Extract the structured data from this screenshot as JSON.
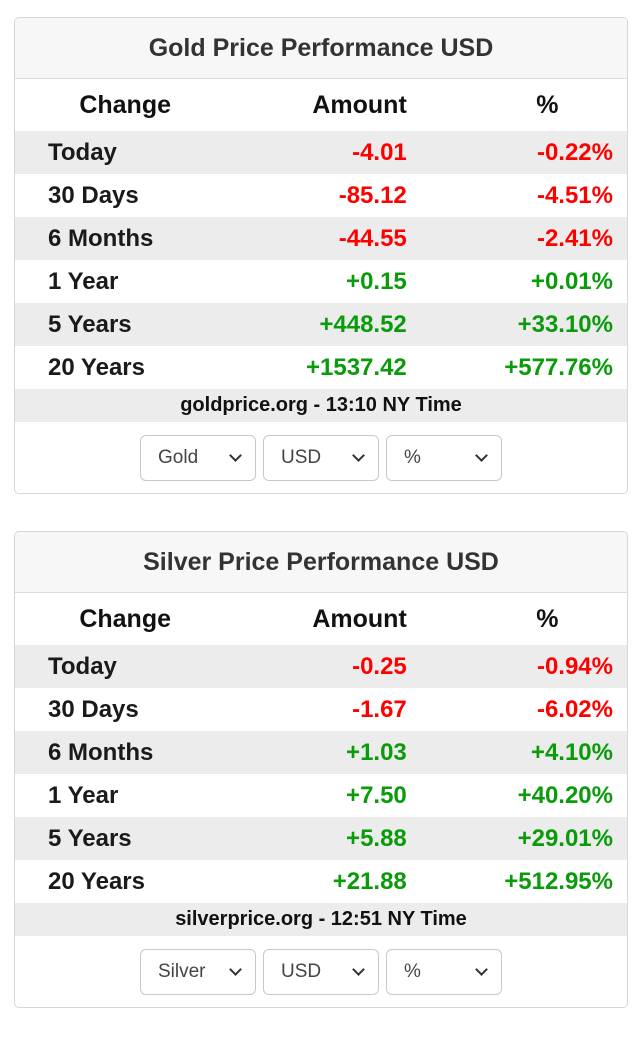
{
  "colors": {
    "positive": "#0a9b0a",
    "negative": "#ff0000"
  },
  "cards": [
    {
      "title": "Gold Price Performance USD",
      "columns": {
        "change": "Change",
        "amount": "Amount",
        "percent": "%"
      },
      "rows": [
        {
          "label": "Today",
          "amount": "-4.01",
          "percent": "-0.22%",
          "direction": "down"
        },
        {
          "label": "30 Days",
          "amount": "-85.12",
          "percent": "-4.51%",
          "direction": "down"
        },
        {
          "label": "6 Months",
          "amount": "-44.55",
          "percent": "-2.41%",
          "direction": "down"
        },
        {
          "label": "1 Year",
          "amount": "+0.15",
          "percent": "+0.01%",
          "direction": "up"
        },
        {
          "label": "5 Years",
          "amount": "+448.52",
          "percent": "+33.10%",
          "direction": "up"
        },
        {
          "label": "20 Years",
          "amount": "+1537.42",
          "percent": "+577.76%",
          "direction": "up"
        }
      ],
      "footer": "goldprice.org - 13:10 NY Time",
      "selects": {
        "metal": "Gold",
        "currency": "USD",
        "unit": "%"
      }
    },
    {
      "title": "Silver Price Performance USD",
      "columns": {
        "change": "Change",
        "amount": "Amount",
        "percent": "%"
      },
      "rows": [
        {
          "label": "Today",
          "amount": "-0.25",
          "percent": "-0.94%",
          "direction": "down"
        },
        {
          "label": "30 Days",
          "amount": "-1.67",
          "percent": "-6.02%",
          "direction": "down"
        },
        {
          "label": "6 Months",
          "amount": "+1.03",
          "percent": "+4.10%",
          "direction": "up"
        },
        {
          "label": "1 Year",
          "amount": "+7.50",
          "percent": "+40.20%",
          "direction": "up"
        },
        {
          "label": "5 Years",
          "amount": "+5.88",
          "percent": "+29.01%",
          "direction": "up"
        },
        {
          "label": "20 Years",
          "amount": "+21.88",
          "percent": "+512.95%",
          "direction": "up"
        }
      ],
      "footer": "silverprice.org - 12:51 NY Time",
      "selects": {
        "metal": "Silver",
        "currency": "USD",
        "unit": "%"
      }
    }
  ]
}
